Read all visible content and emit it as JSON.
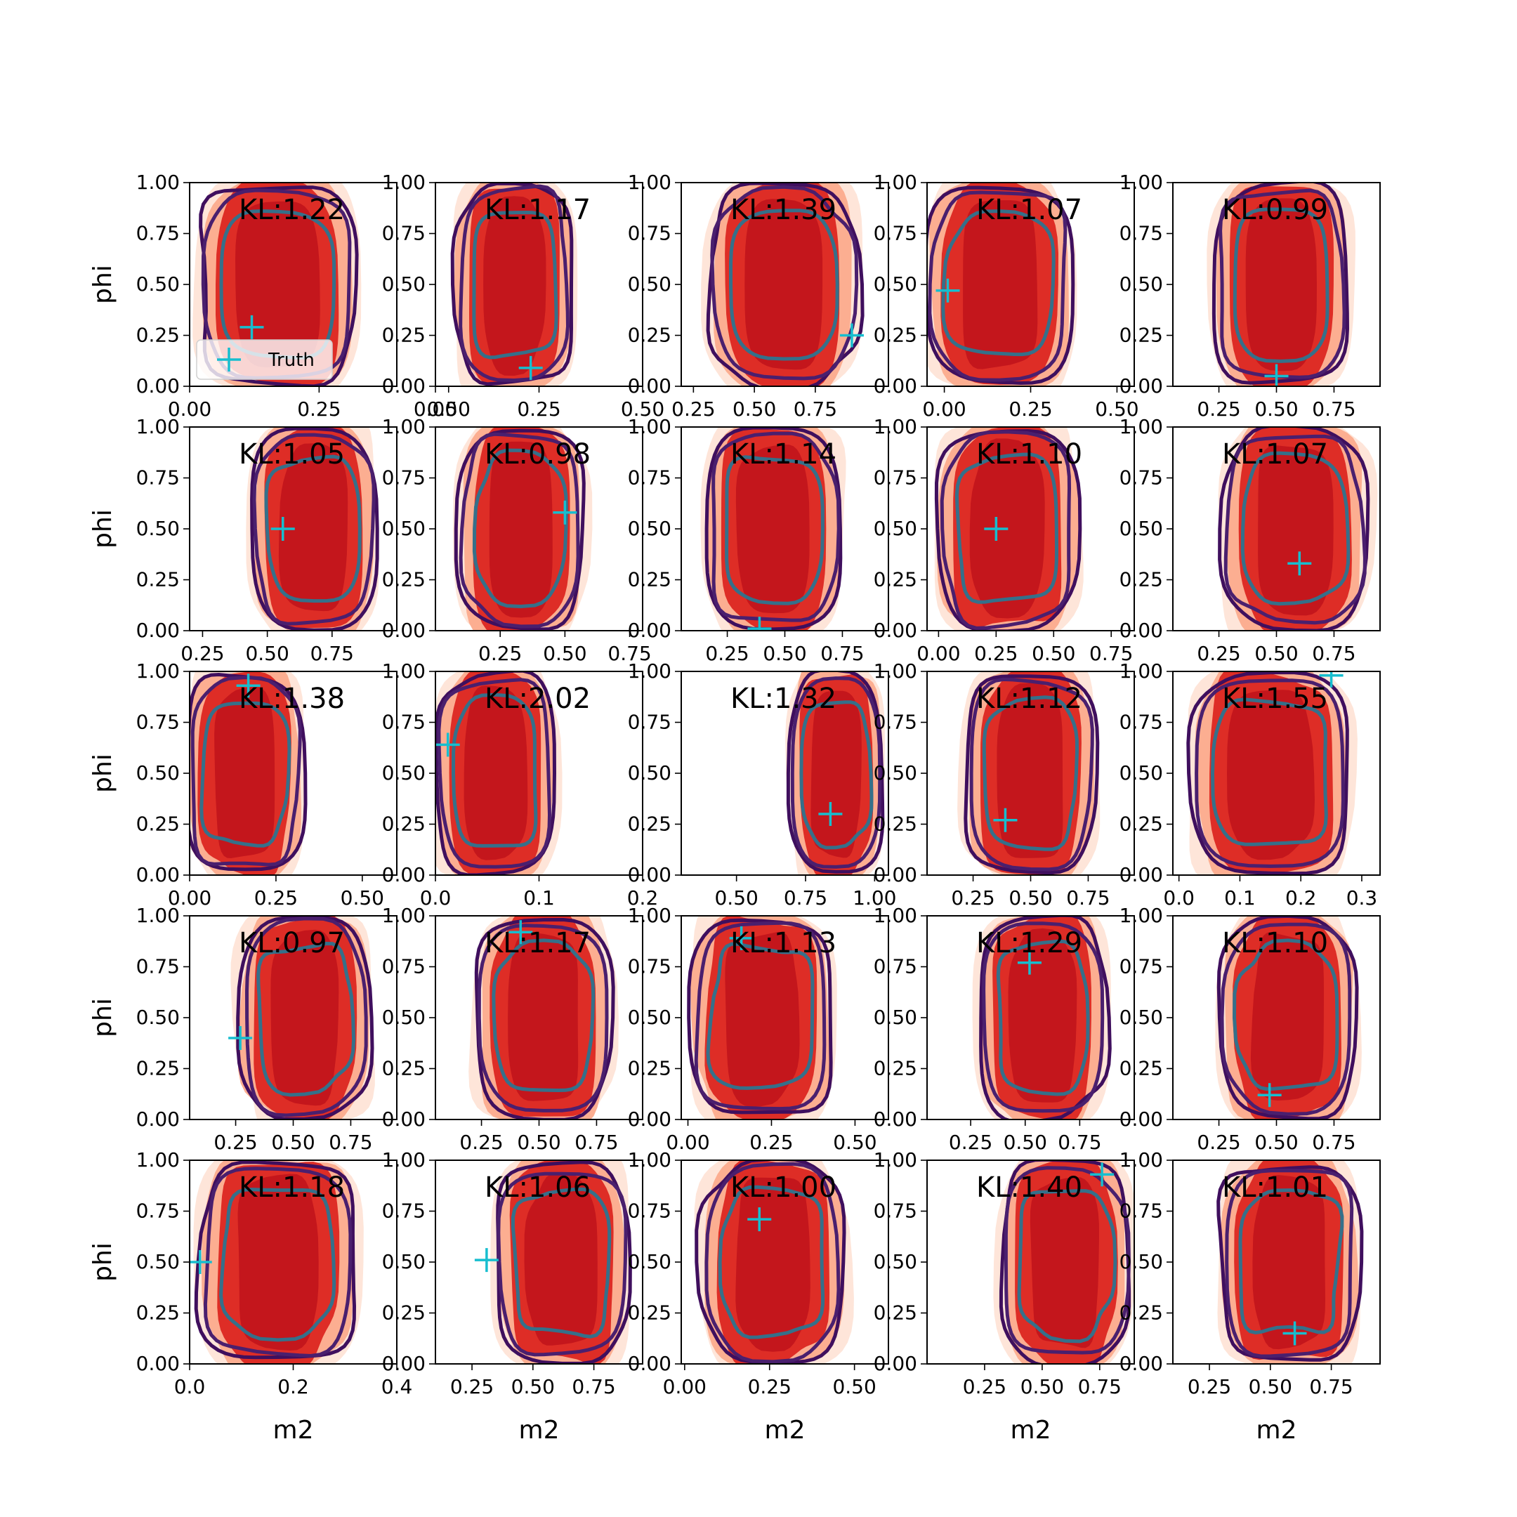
{
  "figure": {
    "legend": {
      "label": "Truth",
      "placement": "lower-left",
      "panel": 0
    },
    "xlabel": "m2",
    "ylabel": "phi",
    "shared_y": {
      "ylim": [
        0,
        1
      ],
      "ticks": [
        "0.00",
        "0.25",
        "0.50",
        "0.75",
        "1.00"
      ]
    }
  },
  "colors": {
    "fill_levels": [
      "#fee5d9",
      "#fcae91",
      "#de2d26",
      "#c4161c"
    ],
    "contour_outer": "#3f0f5e",
    "contour_inner": "#4a1f6e",
    "contour_core": "#35708a",
    "truth_marker": "#17becf"
  },
  "chart_data": [
    {
      "type": "contour",
      "kl_label": "KL:1.22",
      "xlim": [
        0,
        0.4
      ],
      "x_ticks": [
        0,
        0.25,
        0.5
      ],
      "x_tick_labels": [
        "0.00",
        "0.25",
        "0.50"
      ],
      "truth": {
        "x": 0.12,
        "y": 0.29
      },
      "center": [
        0.17,
        0.5
      ],
      "half_width": 0.145
    },
    {
      "type": "contour",
      "kl_label": "KL:1.17",
      "xlim": [
        0,
        0.5
      ],
      "x_ticks": [
        0,
        0.25,
        0.5
      ],
      "x_tick_labels": [
        "0.00",
        "0.25",
        "0.50"
      ],
      "truth": {
        "x": 0.23,
        "y": 0.09
      },
      "center": [
        0.19,
        0.5
      ],
      "half_width": 0.135
    },
    {
      "type": "contour",
      "kl_label": "KL:1.39",
      "xlim": [
        0.2,
        1.05
      ],
      "x_ticks": [
        0.25,
        0.5,
        0.75
      ],
      "x_tick_labels": [
        "0.25",
        "0.50",
        "0.75"
      ],
      "truth": {
        "x": 0.9,
        "y": 0.25
      },
      "center": [
        0.62,
        0.5
      ],
      "half_width": 0.29
    },
    {
      "type": "contour",
      "kl_label": "KL:1.07",
      "xlim": [
        -0.05,
        0.55
      ],
      "x_ticks": [
        0,
        0.25,
        0.5
      ],
      "x_tick_labels": [
        "0.00",
        "0.25",
        "0.50"
      ],
      "truth": {
        "x": 0.01,
        "y": 0.47
      },
      "center": [
        0.16,
        0.5
      ],
      "half_width": 0.2
    },
    {
      "type": "contour",
      "kl_label": "KL:0.99",
      "xlim": [
        0.05,
        0.95
      ],
      "x_ticks": [
        0.25,
        0.5,
        0.75
      ],
      "x_tick_labels": [
        "0.25",
        "0.50",
        "0.75"
      ],
      "truth": {
        "x": 0.5,
        "y": 0.05
      },
      "center": [
        0.52,
        0.5
      ],
      "half_width": 0.28
    },
    {
      "type": "contour",
      "kl_label": "KL:1.05",
      "xlim": [
        0.2,
        1
      ],
      "x_ticks": [
        0.25,
        0.5,
        0.75
      ],
      "x_tick_labels": [
        "0.25",
        "0.50",
        "0.75"
      ],
      "truth": {
        "x": 0.56,
        "y": 0.5
      },
      "center": [
        0.68,
        0.5
      ],
      "half_width": 0.23
    },
    {
      "type": "contour",
      "kl_label": "KL:0.98",
      "xlim": [
        0,
        0.8
      ],
      "x_ticks": [
        0.25,
        0.5,
        0.75
      ],
      "x_tick_labels": [
        "0.25",
        "0.50",
        "0.75"
      ],
      "truth": {
        "x": 0.5,
        "y": 0.58
      },
      "center": [
        0.33,
        0.5
      ],
      "half_width": 0.23
    },
    {
      "type": "contour",
      "kl_label": "KL:1.14",
      "xlim": [
        0.05,
        0.95
      ],
      "x_ticks": [
        0.25,
        0.5,
        0.75
      ],
      "x_tick_labels": [
        "0.25",
        "0.50",
        "0.75"
      ],
      "truth": {
        "x": 0.39,
        "y": 0.01
      },
      "center": [
        0.45,
        0.5
      ],
      "half_width": 0.28
    },
    {
      "type": "contour",
      "kl_label": "KL:1.10",
      "xlim": [
        -0.05,
        0.85
      ],
      "x_ticks": [
        0,
        0.25,
        0.5,
        0.75
      ],
      "x_tick_labels": [
        "0.00",
        "0.25",
        "0.50",
        "0.75"
      ],
      "truth": {
        "x": 0.25,
        "y": 0.5
      },
      "center": [
        0.3,
        0.5
      ],
      "half_width": 0.29
    },
    {
      "type": "contour",
      "kl_label": "KL:1.07",
      "xlim": [
        0.05,
        0.95
      ],
      "x_ticks": [
        0.25,
        0.5,
        0.75
      ],
      "x_tick_labels": [
        "0.25",
        "0.50",
        "0.75"
      ],
      "truth": {
        "x": 0.6,
        "y": 0.33
      },
      "center": [
        0.58,
        0.5
      ],
      "half_width": 0.3
    },
    {
      "type": "contour",
      "kl_label": "KL:1.38",
      "xlim": [
        0,
        0.6
      ],
      "x_ticks": [
        0,
        0.25,
        0.5
      ],
      "x_tick_labels": [
        "0.00",
        "0.25",
        "0.50"
      ],
      "truth": {
        "x": 0.17,
        "y": 0.93
      },
      "center": [
        0.16,
        0.5
      ],
      "half_width": 0.16
    },
    {
      "type": "contour",
      "kl_label": "KL:2.02",
      "xlim": [
        0,
        0.2
      ],
      "x_ticks": [
        0,
        0.1,
        0.2
      ],
      "x_tick_labels": [
        "0.0",
        "0.1",
        "0.2"
      ],
      "truth": {
        "x": 0.012,
        "y": 0.64
      },
      "center": [
        0.058,
        0.5
      ],
      "half_width": 0.055
    },
    {
      "type": "contour",
      "kl_label": "KL:1.32",
      "xlim": [
        0.3,
        1.05
      ],
      "x_ticks": [
        0.5,
        0.75,
        1
      ],
      "x_tick_labels": [
        "0.50",
        "0.75",
        "1.00"
      ],
      "truth": {
        "x": 0.84,
        "y": 0.3
      },
      "center": [
        0.86,
        0.5
      ],
      "half_width": 0.16
    },
    {
      "type": "contour",
      "kl_label": "KL:1.12",
      "xlim": [
        0.05,
        0.95
      ],
      "x_ticks": [
        0.25,
        0.5,
        0.75
      ],
      "x_tick_labels": [
        "0.25",
        "0.50",
        "0.75"
      ],
      "truth": {
        "x": 0.39,
        "y": 0.27
      },
      "center": [
        0.5,
        0.5
      ],
      "half_width": 0.27
    },
    {
      "type": "contour",
      "kl_label": "KL:1.55",
      "xlim": [
        -0.01,
        0.33
      ],
      "x_ticks": [
        0,
        0.1,
        0.2,
        0.3
      ],
      "x_tick_labels": [
        "0.0",
        "0.1",
        "0.2",
        "0.3"
      ],
      "truth": {
        "x": 0.25,
        "y": 0.98
      },
      "center": [
        0.15,
        0.5
      ],
      "half_width": 0.125
    },
    {
      "type": "contour",
      "kl_label": "KL:0.97",
      "xlim": [
        0.05,
        0.95
      ],
      "x_ticks": [
        0.25,
        0.5,
        0.75
      ],
      "x_tick_labels": [
        "0.25",
        "0.50",
        "0.75"
      ],
      "truth": {
        "x": 0.27,
        "y": 0.4
      },
      "center": [
        0.55,
        0.5
      ],
      "half_width": 0.27
    },
    {
      "type": "contour",
      "kl_label": "KL:1.17",
      "xlim": [
        0.05,
        0.95
      ],
      "x_ticks": [
        0.25,
        0.5,
        0.75
      ],
      "x_tick_labels": [
        "0.25",
        "0.50",
        "0.75"
      ],
      "truth": {
        "x": 0.42,
        "y": 0.92
      },
      "center": [
        0.52,
        0.5
      ],
      "half_width": 0.28
    },
    {
      "type": "contour",
      "kl_label": "KL:1.13",
      "xlim": [
        -0.02,
        0.6
      ],
      "x_ticks": [
        0,
        0.25,
        0.5
      ],
      "x_tick_labels": [
        "0.00",
        "0.25",
        "0.50"
      ],
      "truth": {
        "x": 0.16,
        "y": 0.89
      },
      "center": [
        0.22,
        0.5
      ],
      "half_width": 0.2
    },
    {
      "type": "contour",
      "kl_label": "KL:1.29",
      "xlim": [
        0.05,
        1
      ],
      "x_ticks": [
        0.25,
        0.5,
        0.75
      ],
      "x_tick_labels": [
        "0.25",
        "0.50",
        "0.75"
      ],
      "truth": {
        "x": 0.52,
        "y": 0.77
      },
      "center": [
        0.58,
        0.5
      ],
      "half_width": 0.28
    },
    {
      "type": "contour",
      "kl_label": "KL:1.10",
      "xlim": [
        0.05,
        0.95
      ],
      "x_ticks": [
        0.25,
        0.5,
        0.75
      ],
      "x_tick_labels": [
        "0.25",
        "0.50",
        "0.75"
      ],
      "truth": {
        "x": 0.47,
        "y": 0.12
      },
      "center": [
        0.55,
        0.5
      ],
      "half_width": 0.28
    },
    {
      "type": "contour",
      "kl_label": "KL:1.18",
      "xlim": [
        0,
        0.4
      ],
      "x_ticks": [
        0,
        0.2,
        0.4
      ],
      "x_tick_labels": [
        "0.0",
        "0.2",
        "0.4"
      ],
      "truth": {
        "x": 0.02,
        "y": 0.5
      },
      "center": [
        0.17,
        0.5
      ],
      "half_width": 0.145
    },
    {
      "type": "contour",
      "kl_label": "KL:1.06",
      "xlim": [
        0.1,
        0.95
      ],
      "x_ticks": [
        0.25,
        0.5,
        0.75
      ],
      "x_tick_labels": [
        "0.25",
        "0.50",
        "0.75"
      ],
      "truth": {
        "x": 0.31,
        "y": 0.51
      },
      "center": [
        0.62,
        0.5
      ],
      "half_width": 0.26
    },
    {
      "type": "contour",
      "kl_label": "KL:1.00",
      "xlim": [
        -0.01,
        0.6
      ],
      "x_ticks": [
        0,
        0.25,
        0.5
      ],
      "x_tick_labels": [
        "0.00",
        "0.25",
        "0.50"
      ],
      "truth": {
        "x": 0.22,
        "y": 0.71
      },
      "center": [
        0.26,
        0.5
      ],
      "half_width": 0.2
    },
    {
      "type": "contour",
      "kl_label": "KL:1.40",
      "xlim": [
        0,
        0.9
      ],
      "x_ticks": [
        0.25,
        0.5,
        0.75
      ],
      "x_tick_labels": [
        "0.25",
        "0.50",
        "0.75"
      ],
      "truth": {
        "x": 0.76,
        "y": 0.93
      },
      "center": [
        0.6,
        0.5
      ],
      "half_width": 0.27
    },
    {
      "type": "contour",
      "kl_label": "KL:1.01",
      "xlim": [
        0.1,
        0.95
      ],
      "x_ticks": [
        0.25,
        0.5,
        0.75
      ],
      "x_tick_labels": [
        "0.25",
        "0.50",
        "0.75"
      ],
      "truth": {
        "x": 0.6,
        "y": 0.15
      },
      "center": [
        0.58,
        0.5
      ],
      "half_width": 0.27
    }
  ]
}
